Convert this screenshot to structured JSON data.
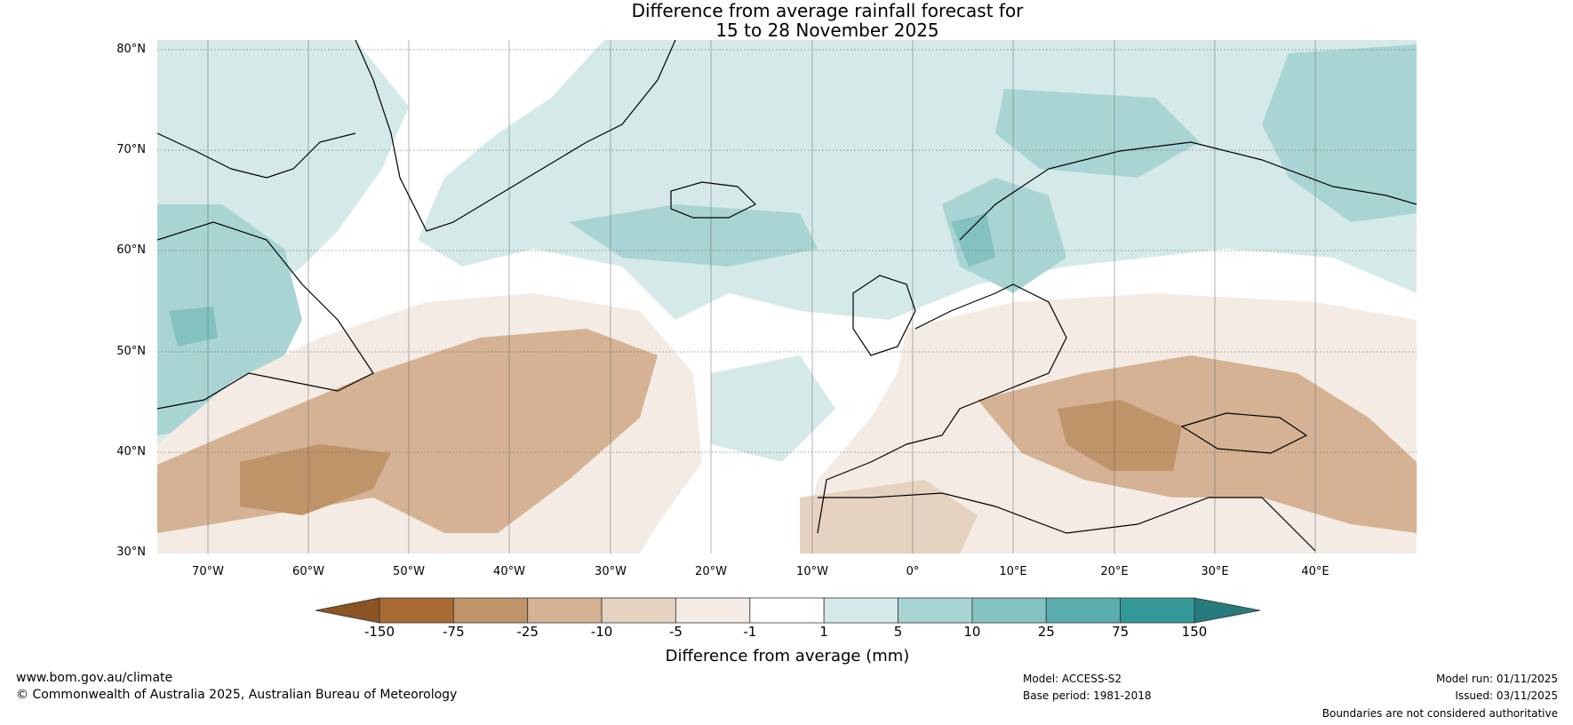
{
  "title": {
    "line1": "Difference from average rainfall forecast for",
    "line2": "15 to 28 November 2025"
  },
  "map": {
    "latitude_labels": [
      "80°N",
      "70°N",
      "60°N",
      "50°N",
      "40°N",
      "30°N"
    ],
    "longitude_labels": [
      "70°W",
      "60°W",
      "50°W",
      "40°W",
      "30°W",
      "20°W",
      "10°W",
      "0°",
      "10°E",
      "20°E",
      "30°E",
      "40°E"
    ],
    "lat_range": [
      30,
      80
    ],
    "lon_range": [
      -75,
      50
    ]
  },
  "colorbar": {
    "boundaries": [
      "-150",
      "-75",
      "-25",
      "-10",
      "-5",
      "-1",
      "1",
      "5",
      "10",
      "25",
      "75",
      "150"
    ],
    "colors": [
      "#a86a33",
      "#bf9468",
      "#d4b293",
      "#e5d2c0",
      "#f3ebe4",
      "#ffffff",
      "#d5e9e9",
      "#a9d4d4",
      "#84c1c1",
      "#5cadad",
      "#35999a"
    ],
    "low_extend_color": "#8c5423",
    "high_extend_color": "#277b7c",
    "title": "Difference from average (mm)"
  },
  "footer": {
    "website": "www.bom.gov.au/climate",
    "copyright": "© Commonwealth of Australia 2025, Australian Bureau of Meteorology",
    "model": "Model: ACCESS-S2",
    "base_period": "Base period: 1981-2018",
    "model_run": "Model run: 01/11/2025",
    "issued": "Issued: 03/11/2025",
    "disclaimer": "Boundaries are not considered authoritative"
  }
}
